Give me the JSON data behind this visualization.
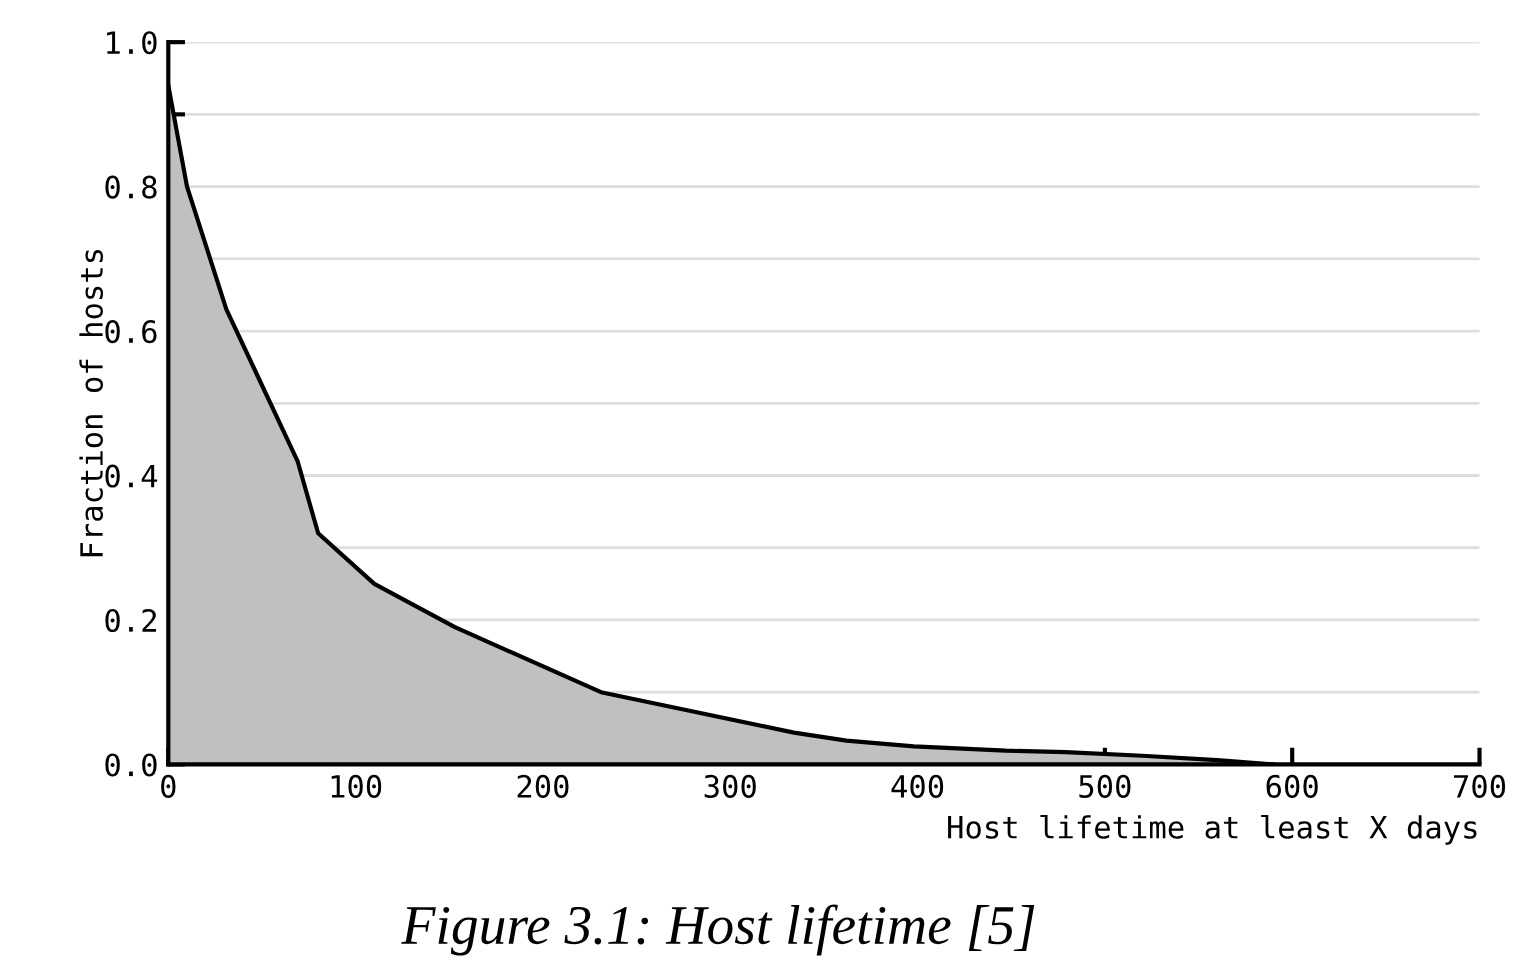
{
  "chart_data": {
    "type": "area",
    "xlabel": "Host lifetime at least X days",
    "ylabel": "Fraction of hosts",
    "annotations": [
      "Figure 3.1: Host lifetime [5]"
    ],
    "series": [
      {
        "color": "#c0c0c0",
        "x": [
          0,
          10,
          31,
          69,
          80,
          110,
          153,
          231,
          277,
          334,
          362,
          398,
          447,
          479,
          520,
          560,
          590
        ],
        "values": [
          0.94,
          0.8,
          0.63,
          0.42,
          0.32,
          0.25,
          0.19,
          0.1,
          0.075,
          0.044,
          0.033,
          0.025,
          0.019,
          0.017,
          0.012,
          0.006,
          0.0
        ]
      }
    ],
    "xlim": [
      0,
      700
    ],
    "xticks": [
      0,
      100,
      200,
      300,
      400,
      500,
      600,
      700
    ],
    "ylim": [
      0,
      1.0
    ],
    "yticks": [
      {
        "value": 0.0,
        "label": "0.0"
      },
      {
        "value": 0.1,
        "label": null
      },
      {
        "value": 0.2,
        "label": "0.2"
      },
      {
        "value": 0.3,
        "label": null
      },
      {
        "value": 0.4,
        "label": "0.4"
      },
      {
        "value": 0.5,
        "label": null
      },
      {
        "value": 0.6,
        "label": "0.6"
      },
      {
        "value": 0.7,
        "label": null
      },
      {
        "value": 0.8,
        "label": "0.8"
      },
      {
        "value": 0.9,
        "label": null
      },
      {
        "value": 1.0,
        "label": "1.0"
      }
    ],
    "grid": "y",
    "legend": false,
    "line_style": "solid",
    "marker": "none"
  }
}
